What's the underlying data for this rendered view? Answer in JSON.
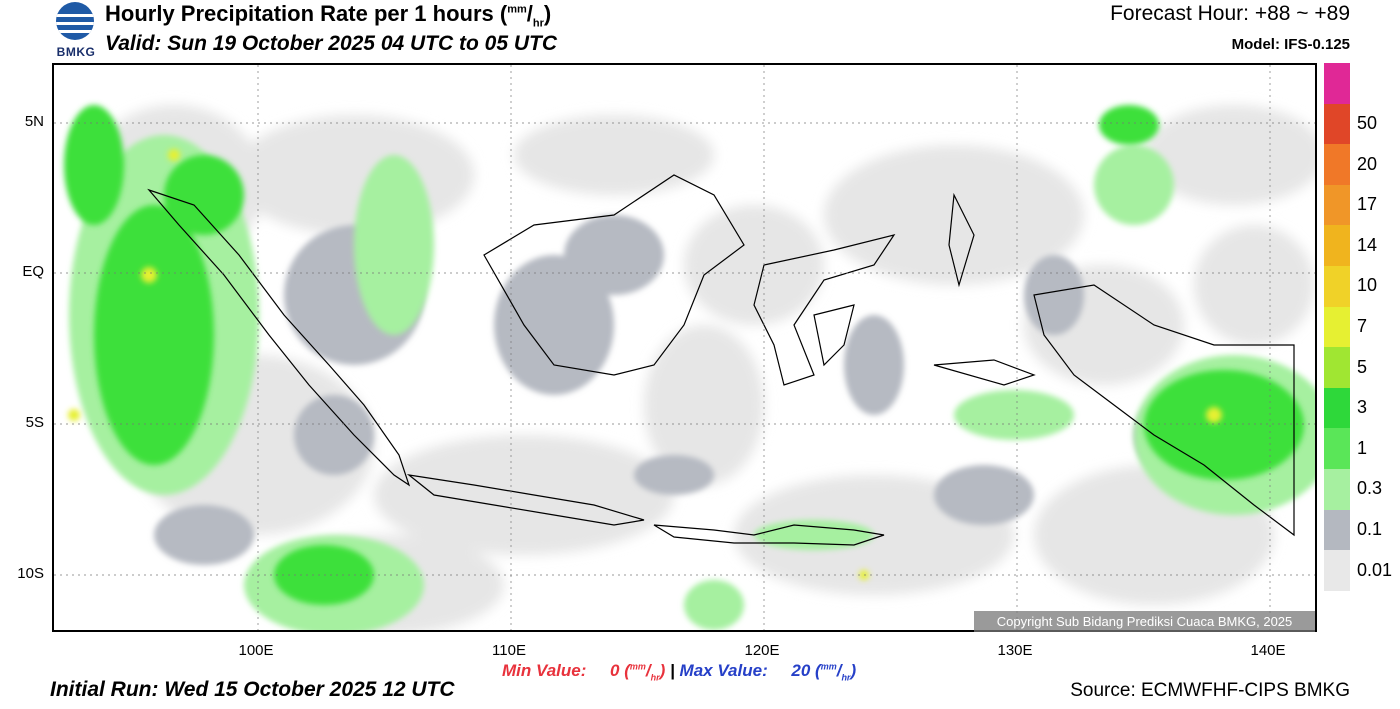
{
  "header": {
    "logo_text": "BMKG",
    "title": "Hourly Precipitation Rate per 1 hours",
    "title_unit_num": "mm",
    "title_unit_den": "hr",
    "valid": "Valid: Sun 19 October 2025 04 UTC to 05 UTC",
    "forecast_hour": "Forecast Hour: +88 ~ +89",
    "model": "Model: IFS-0.125"
  },
  "map": {
    "lat_labels": [
      "5N",
      "EQ",
      "5S",
      "10S"
    ],
    "lon_labels": [
      "100E",
      "110E",
      "120E",
      "130E",
      "140E"
    ],
    "copyright": "Copyright Sub Bidang Prediksi Cuaca BMKG, 2025"
  },
  "legend": {
    "colors": [
      "#e8e8e8",
      "#b4b8c0",
      "#a6f0a0",
      "#5ae658",
      "#2ed83a",
      "#a0e632",
      "#e6f032",
      "#f0d228",
      "#f0b41e",
      "#f09628",
      "#f07828",
      "#e04628",
      "#e02896"
    ],
    "labels": [
      "0.01",
      "0.1",
      "0.3",
      "1",
      "3",
      "5",
      "7",
      "10",
      "14",
      "17",
      "20",
      "50"
    ]
  },
  "stats": {
    "min_label": "Min Value:",
    "min_value": "0",
    "max_label": "Max Value:",
    "max_value": "20",
    "unit_num": "mm",
    "unit_den": "hr",
    "separator": "|"
  },
  "footer": {
    "initial_run": "Initial Run: Wed 15 October 2025 12 UTC",
    "source": "Source: ECMWFHF-CIPS BMKG"
  }
}
